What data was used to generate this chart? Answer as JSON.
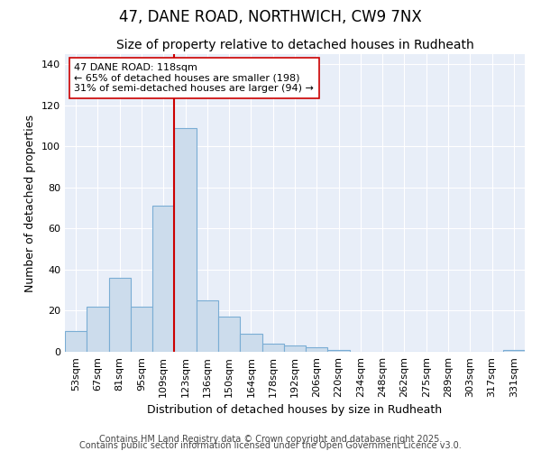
{
  "title1": "47, DANE ROAD, NORTHWICH, CW9 7NX",
  "title2": "Size of property relative to detached houses in Rudheath",
  "xlabel": "Distribution of detached houses by size in Rudheath",
  "ylabel": "Number of detached properties",
  "bin_labels": [
    "53sqm",
    "67sqm",
    "81sqm",
    "95sqm",
    "109sqm",
    "123sqm",
    "136sqm",
    "150sqm",
    "164sqm",
    "178sqm",
    "192sqm",
    "206sqm",
    "220sqm",
    "234sqm",
    "248sqm",
    "262sqm",
    "275sqm",
    "289sqm",
    "303sqm",
    "317sqm",
    "331sqm"
  ],
  "bar_values": [
    10,
    22,
    36,
    22,
    71,
    109,
    25,
    17,
    9,
    4,
    3,
    2,
    1,
    0,
    0,
    0,
    0,
    0,
    0,
    0,
    1
  ],
  "bar_color": "#ccdcec",
  "bar_edge_color": "#7aadd4",
  "vline_x": 4.5,
  "vline_color": "#cc0000",
  "annotation_text": "47 DANE ROAD: 118sqm\n← 65% of detached houses are smaller (198)\n31% of semi-detached houses are larger (94) →",
  "annotation_box_color": "#ffffff",
  "annotation_box_edge": "#cc0000",
  "ylim": [
    0,
    145
  ],
  "yticks": [
    0,
    20,
    40,
    60,
    80,
    100,
    120,
    140
  ],
  "background_color": "#ffffff",
  "plot_bg_color": "#e8eef8",
  "grid_color": "#ffffff",
  "footer1": "Contains HM Land Registry data © Crown copyright and database right 2025.",
  "footer2": "Contains public sector information licensed under the Open Government Licence v3.0.",
  "title_fontsize": 12,
  "subtitle_fontsize": 10,
  "axis_label_fontsize": 9,
  "tick_fontsize": 8,
  "annotation_fontsize": 8,
  "footer_fontsize": 7
}
